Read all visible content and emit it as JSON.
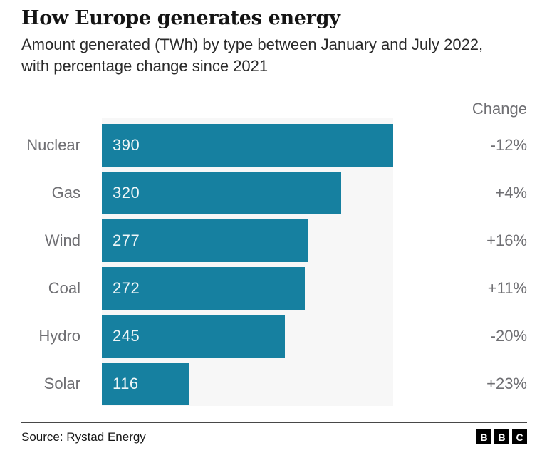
{
  "title": "How Europe generates energy",
  "subtitle": "Amount generated (TWh) by type between January and July 2022, with percentage change since 2021",
  "chart_data": {
    "type": "bar",
    "orientation": "horizontal",
    "title": "How Europe generates energy",
    "unit": "TWh",
    "change_header": "Change",
    "categories": [
      "Nuclear",
      "Gas",
      "Wind",
      "Coal",
      "Hydro",
      "Solar"
    ],
    "values": [
      390,
      320,
      277,
      272,
      245,
      116
    ],
    "changes": [
      "-12%",
      "+4%",
      "+16%",
      "+11%",
      "-20%",
      "+23%"
    ],
    "max_value": 390,
    "xlim": [
      0,
      390
    ],
    "grid": false,
    "legend": false
  },
  "colors": {
    "bar": "#1680a0",
    "plot_background": "#f7f7f7",
    "label_gray": "#6f6f73",
    "value_text": "#eff6f8",
    "title_text": "#141414",
    "logo_block": "#000000"
  },
  "footer": {
    "source": "Source: Rystad Energy",
    "logo_letters": [
      "B",
      "B",
      "C"
    ]
  }
}
